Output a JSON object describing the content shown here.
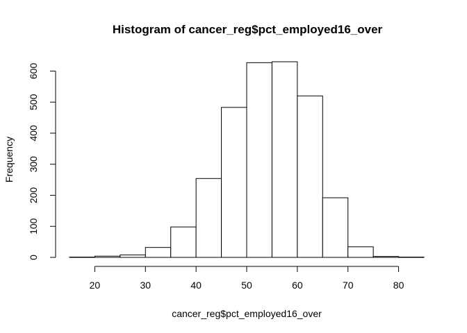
{
  "chart_data": {
    "type": "bar",
    "title": "Histogram of cancer_reg$pct_employed16_over",
    "xlabel": "cancer_reg$pct_employed16_over",
    "ylabel": "Frequency",
    "bins": [
      {
        "x0": 15,
        "x1": 20,
        "count": 1
      },
      {
        "x0": 20,
        "x1": 25,
        "count": 4
      },
      {
        "x0": 25,
        "x1": 30,
        "count": 8
      },
      {
        "x0": 30,
        "x1": 35,
        "count": 32
      },
      {
        "x0": 35,
        "x1": 40,
        "count": 98
      },
      {
        "x0": 40,
        "x1": 45,
        "count": 254
      },
      {
        "x0": 45,
        "x1": 50,
        "count": 483
      },
      {
        "x0": 50,
        "x1": 55,
        "count": 627
      },
      {
        "x0": 55,
        "x1": 60,
        "count": 630
      },
      {
        "x0": 60,
        "x1": 65,
        "count": 520
      },
      {
        "x0": 65,
        "x1": 70,
        "count": 192
      },
      {
        "x0": 70,
        "x1": 75,
        "count": 34
      },
      {
        "x0": 75,
        "x1": 80,
        "count": 3
      },
      {
        "x0": 80,
        "x1": 85,
        "count": 1
      }
    ],
    "xlim": [
      15,
      85
    ],
    "ylim": [
      0,
      630
    ],
    "xticks": [
      20,
      30,
      40,
      50,
      60,
      70,
      80
    ],
    "yticks": [
      0,
      100,
      200,
      300,
      400,
      500,
      600
    ],
    "grid": false,
    "legend": "none"
  }
}
